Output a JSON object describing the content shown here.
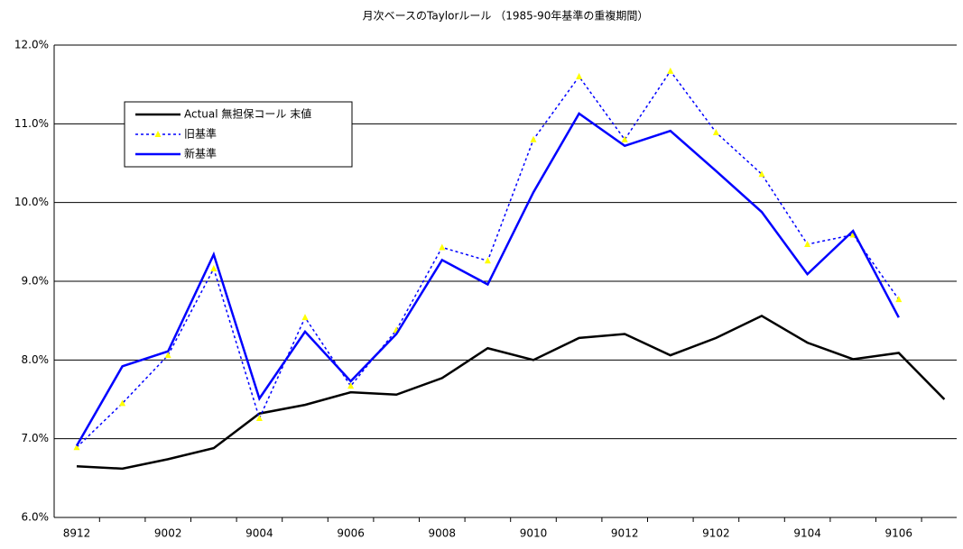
{
  "chart_data": {
    "type": "line",
    "title": "月次ベースのTaylorルール （1985-90年基準の重複期間）",
    "categories": [
      "8912",
      null,
      "9002",
      null,
      "9004",
      null,
      "9006",
      null,
      "9008",
      null,
      "9010",
      null,
      "9012",
      null,
      "9102",
      null,
      "9104",
      null,
      "9106",
      null
    ],
    "series": [
      {
        "name": "Actual 無担保コール 末値",
        "color": "#000000",
        "style": "solid",
        "values": [
          6.65,
          6.62,
          6.74,
          6.88,
          7.32,
          7.43,
          7.59,
          7.56,
          7.77,
          8.15,
          8.0,
          8.28,
          8.33,
          8.06,
          8.28,
          8.56,
          8.22,
          8.01,
          8.09,
          7.5
        ]
      },
      {
        "name": "旧基準",
        "color": "#0000ff",
        "marker_color": "#ffff00",
        "style": "dotted",
        "values": [
          6.89,
          7.45,
          8.06,
          9.16,
          7.26,
          8.54,
          7.67,
          8.38,
          9.43,
          9.26,
          10.8,
          11.6,
          10.8,
          11.67,
          10.89,
          10.36,
          9.47,
          9.59,
          8.77,
          null
        ]
      },
      {
        "name": "新基準",
        "color": "#0000ff",
        "style": "solid",
        "values": [
          6.91,
          7.92,
          8.11,
          9.34,
          7.51,
          8.36,
          7.73,
          8.33,
          9.27,
          8.96,
          10.13,
          11.13,
          10.72,
          10.91,
          10.4,
          9.88,
          9.09,
          9.64,
          8.54,
          null
        ]
      }
    ],
    "ylim": [
      6.0,
      12.0
    ],
    "yticks": [
      {
        "value": 6,
        "label": "6.0%"
      },
      {
        "value": 7,
        "label": "7.0%"
      },
      {
        "value": 8,
        "label": "8.0%"
      },
      {
        "value": 9,
        "label": "9.0%"
      },
      {
        "value": 10,
        "label": "10.0%"
      },
      {
        "value": 11,
        "label": "11.0%"
      },
      {
        "value": 12,
        "label": "12.0%"
      }
    ],
    "grid": true,
    "legend": "upper-left"
  }
}
